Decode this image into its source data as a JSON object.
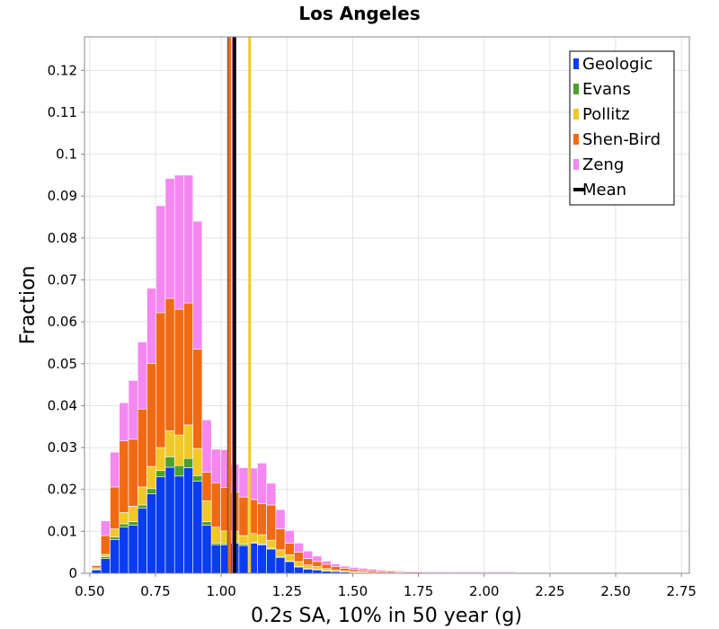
{
  "colors": {
    "Geologic": "#0a3cf0",
    "Evans": "#4aa02c",
    "Pollitz": "#f0c828",
    "Shen-Bird": "#f06a14",
    "Zeng": "#f587f0",
    "Mean": "#000000"
  },
  "chart_data": {
    "type": "bar",
    "stacked": true,
    "title": "Los Angeles",
    "xlabel": "0.2s SA, 10% in 50 year (g)",
    "ylabel": "Fraction",
    "xlim": [
      0.48,
      2.78
    ],
    "ylim": [
      0,
      0.128
    ],
    "xticks": [
      "0.50",
      "0.75",
      "1.00",
      "1.25",
      "1.50",
      "1.75",
      "2.00",
      "2.25",
      "2.50",
      "2.75"
    ],
    "yticks": [
      "0",
      "0.01",
      "0.02",
      "0.03",
      "0.04",
      "0.05",
      "0.06",
      "0.07",
      "0.08",
      "0.09",
      "0.1",
      "0.11",
      "0.12"
    ],
    "grid": true,
    "legend_position": "top-right",
    "bin_width": 0.035,
    "x": [
      0.525,
      0.56,
      0.595,
      0.63,
      0.665,
      0.7,
      0.735,
      0.77,
      0.805,
      0.84,
      0.875,
      0.91,
      0.945,
      0.98,
      1.015,
      1.05,
      1.085,
      1.12,
      1.155,
      1.19,
      1.225,
      1.26,
      1.295,
      1.33,
      1.365,
      1.4,
      1.435,
      1.47,
      1.505,
      1.54,
      1.575,
      1.61,
      1.645,
      1.68,
      1.715,
      1.75,
      1.785,
      1.82,
      1.855,
      1.89,
      1.925,
      1.96,
      1.995,
      2.03,
      2.065,
      2.1,
      2.135,
      2.17,
      2.205,
      2.24,
      2.275,
      2.31,
      2.345,
      2.38,
      2.415,
      2.45,
      2.485,
      2.52,
      2.555,
      2.59,
      2.625,
      2.66,
      2.695,
      2.73
    ],
    "series": [
      {
        "name": "Geologic",
        "values": [
          0.0008,
          0.0035,
          0.008,
          0.011,
          0.0115,
          0.0155,
          0.019,
          0.023,
          0.0253,
          0.0232,
          0.0252,
          0.022,
          0.0115,
          0.0068,
          0.0068,
          0.0072,
          0.0066,
          0.0072,
          0.0068,
          0.0058,
          0.0038,
          0.0028,
          0.0015,
          0.001,
          0.0008,
          0.0005,
          0.0004,
          0.0003,
          0.0002,
          0.0002,
          0.0001,
          0.0001,
          0.0001,
          0.0001,
          5e-05,
          5e-05,
          5e-05,
          5e-05,
          5e-05,
          5e-05,
          5e-05,
          5e-05,
          5e-05,
          5e-05,
          5e-05,
          5e-05,
          5e-05,
          5e-05,
          5e-05,
          5e-05,
          5e-05,
          5e-05,
          5e-05,
          5e-05,
          5e-05,
          5e-05,
          5e-05,
          5e-05,
          5e-05,
          5e-05,
          5e-05,
          5e-05,
          5e-05,
          5e-05
        ]
      },
      {
        "name": "Evans",
        "values": [
          0.0002,
          0.0005,
          0.0007,
          0.0008,
          0.0008,
          0.0008,
          0.0012,
          0.0015,
          0.0025,
          0.0025,
          0.0022,
          0.0013,
          0.0008,
          0.0004,
          0.0003,
          0.0003,
          0.0003,
          0.0002,
          0.0002,
          0.0002,
          0.0002,
          0.0001,
          0.0001,
          0.0001,
          0.0001,
          0.0001,
          0.0,
          0.0,
          0.0,
          0.0,
          0.0,
          0.0,
          0.0,
          0.0,
          0.0,
          0.0,
          0.0,
          0.0,
          0.0,
          0.0,
          0.0,
          0.0,
          0.0,
          0.0,
          0.0,
          0.0,
          0.0,
          0.0,
          0.0,
          0.0,
          0.0,
          0.0,
          0.0,
          0.0,
          0.0,
          0.0,
          0.0,
          0.0,
          0.0,
          0.0,
          0.0,
          0.0,
          0.0,
          0.0
        ]
      },
      {
        "name": "Pollitz",
        "values": [
          0.0003,
          0.0005,
          0.0019,
          0.0027,
          0.0037,
          0.0043,
          0.0053,
          0.0055,
          0.0062,
          0.0073,
          0.008,
          0.0065,
          0.005,
          0.0038,
          0.003,
          0.0025,
          0.0021,
          0.0021,
          0.0022,
          0.0019,
          0.0016,
          0.0015,
          0.0012,
          0.0009,
          0.0007,
          0.0005,
          0.0004,
          0.0003,
          0.0002,
          0.0002,
          0.0001,
          0.0001,
          0.0001,
          0.0001,
          5e-05,
          5e-05,
          5e-05,
          5e-05,
          5e-05,
          5e-05,
          5e-05,
          5e-05,
          5e-05,
          5e-05,
          5e-05,
          5e-05,
          5e-05,
          5e-05,
          5e-05,
          5e-05,
          5e-05,
          5e-05,
          5e-05,
          5e-05,
          5e-05,
          5e-05,
          5e-05,
          5e-05,
          5e-05,
          5e-05,
          5e-05,
          5e-05,
          5e-05,
          5e-05
        ]
      },
      {
        "name": "Shen-Bird",
        "values": [
          0.0005,
          0.0045,
          0.01,
          0.0171,
          0.016,
          0.0186,
          0.0246,
          0.0322,
          0.0316,
          0.03,
          0.0291,
          0.0237,
          0.0068,
          0.0106,
          0.0104,
          0.0094,
          0.0092,
          0.0081,
          0.0074,
          0.0084,
          0.005,
          0.0028,
          0.0022,
          0.0015,
          0.0012,
          0.001,
          0.0008,
          0.0006,
          0.0005,
          0.0004,
          0.0004,
          0.0003,
          0.0003,
          0.0002,
          0.0002,
          0.0002,
          0.0001,
          0.0001,
          0.0001,
          0.0001,
          0.0001,
          0.0001,
          0.0001,
          0.0001,
          5e-05,
          5e-05,
          5e-05,
          5e-05,
          5e-05,
          5e-05,
          5e-05,
          5e-05,
          5e-05,
          5e-05,
          5e-05,
          5e-05,
          5e-05,
          5e-05,
          5e-05,
          5e-05,
          5e-05,
          5e-05,
          5e-05,
          5e-05
        ]
      },
      {
        "name": "Zeng",
        "values": [
          0.0002,
          0.0035,
          0.0083,
          0.0091,
          0.014,
          0.016,
          0.0179,
          0.0255,
          0.0286,
          0.032,
          0.0305,
          0.0305,
          0.0125,
          0.008,
          0.009,
          0.0066,
          0.007,
          0.0075,
          0.0097,
          0.0052,
          0.0046,
          0.003,
          0.0022,
          0.0018,
          0.0013,
          0.0008,
          0.0006,
          0.0005,
          0.0005,
          0.0004,
          0.0004,
          0.0003,
          0.0002,
          0.0002,
          0.0002,
          0.0002,
          0.0002,
          0.0002,
          0.0002,
          0.0002,
          0.0002,
          0.0002,
          0.0002,
          0.0002,
          0.0002,
          0.0002,
          0.0001,
          0.0001,
          0.0001,
          0.0001,
          0.0001,
          0.0001,
          0.0001,
          0.0001,
          0.0001,
          0.0001,
          0.0001,
          0.0001,
          0.0001,
          0.0001,
          0.0001,
          0.0001,
          0.0001,
          0.0001
        ]
      }
    ],
    "vertical_lines": [
      {
        "name": "Geologic",
        "x": 1.028
      },
      {
        "name": "Evans",
        "x": 1.03
      },
      {
        "name": "Shen-Bird",
        "x": 1.032
      },
      {
        "name": "Zeng",
        "x": 1.045
      },
      {
        "name": "Pollitz",
        "x": 1.108
      },
      {
        "name": "Mean",
        "x": 1.05
      }
    ],
    "legend": [
      "Geologic",
      "Evans",
      "Pollitz",
      "Shen-Bird",
      "Zeng",
      "Mean"
    ]
  }
}
